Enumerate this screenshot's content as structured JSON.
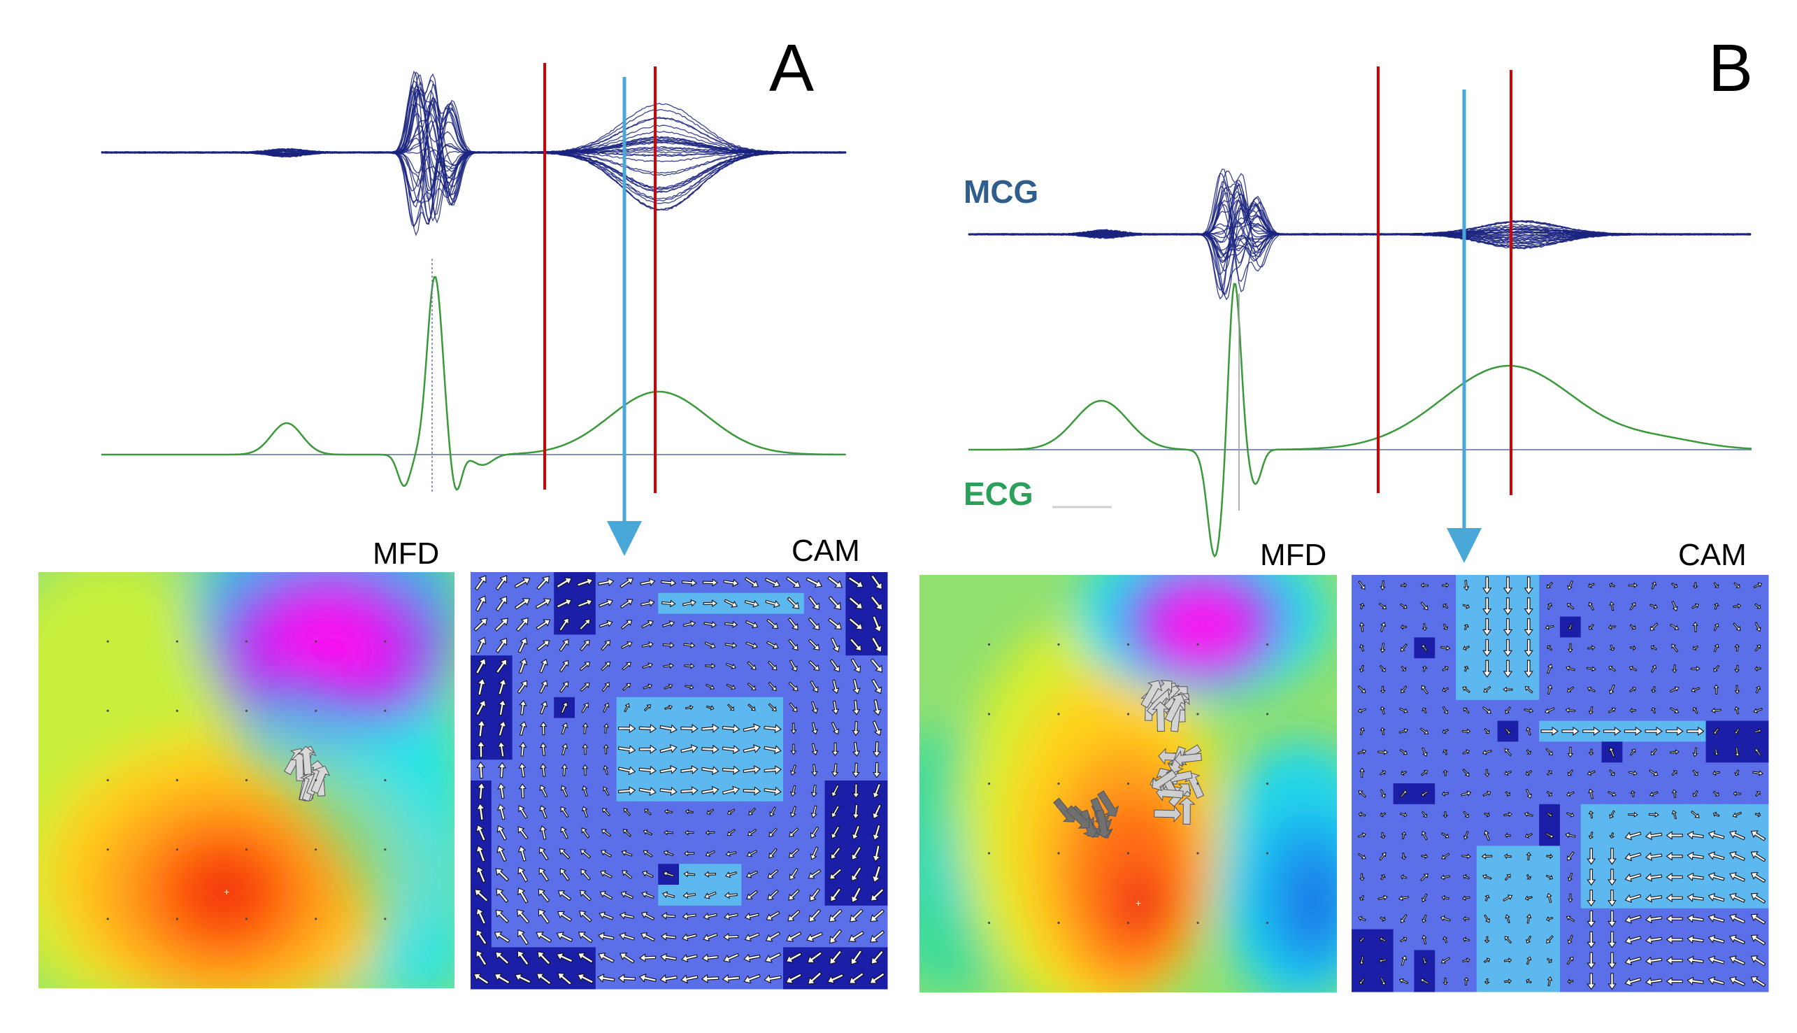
{
  "panels": [
    {
      "letter": "A",
      "mfd_label": "MFD",
      "cam_label": "CAM",
      "mcg_label": "",
      "ecg_label": ""
    },
    {
      "letter": "B",
      "mfd_label": "MFD",
      "cam_label": "CAM",
      "mcg_label": "MCG",
      "ecg_label": "ECG"
    }
  ],
  "colors": {
    "mcg_trace": "#1a237e",
    "ecg_trace": "#3a9a3a",
    "window_marker": "#d50000",
    "time_arrow": "#4aa8d8",
    "baseline": "#8090b8",
    "mcg_label": "#2f5d8c",
    "ecg_label": "#2aa05a",
    "cam_base": "#5b6fe8",
    "cam_dark": "#1b1fa8",
    "cam_light": "#5cb8ee"
  },
  "icons": [
    "arrow-glyph"
  ]
}
